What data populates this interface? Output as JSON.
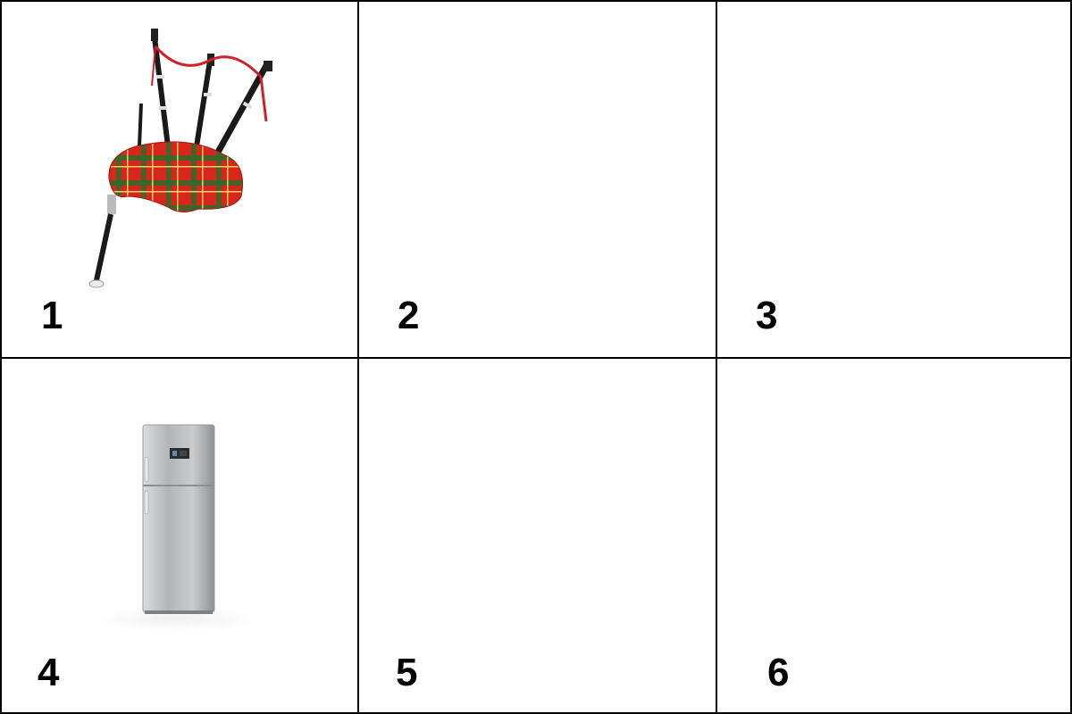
{
  "cells": [
    {
      "number": "1",
      "content": "bagpipes"
    },
    {
      "number": "2",
      "content": ""
    },
    {
      "number": "3",
      "content": ""
    },
    {
      "number": "4",
      "content": "refrigerator"
    },
    {
      "number": "5",
      "content": ""
    },
    {
      "number": "6",
      "content": ""
    }
  ],
  "colors": {
    "border": "#000000",
    "tartan_red": "#d8261a",
    "tartan_green": "#2f6b2a",
    "pipe_black": "#1a1a1a",
    "cord_red": "#d0202a",
    "fridge_silver": "#b8bbbd"
  }
}
